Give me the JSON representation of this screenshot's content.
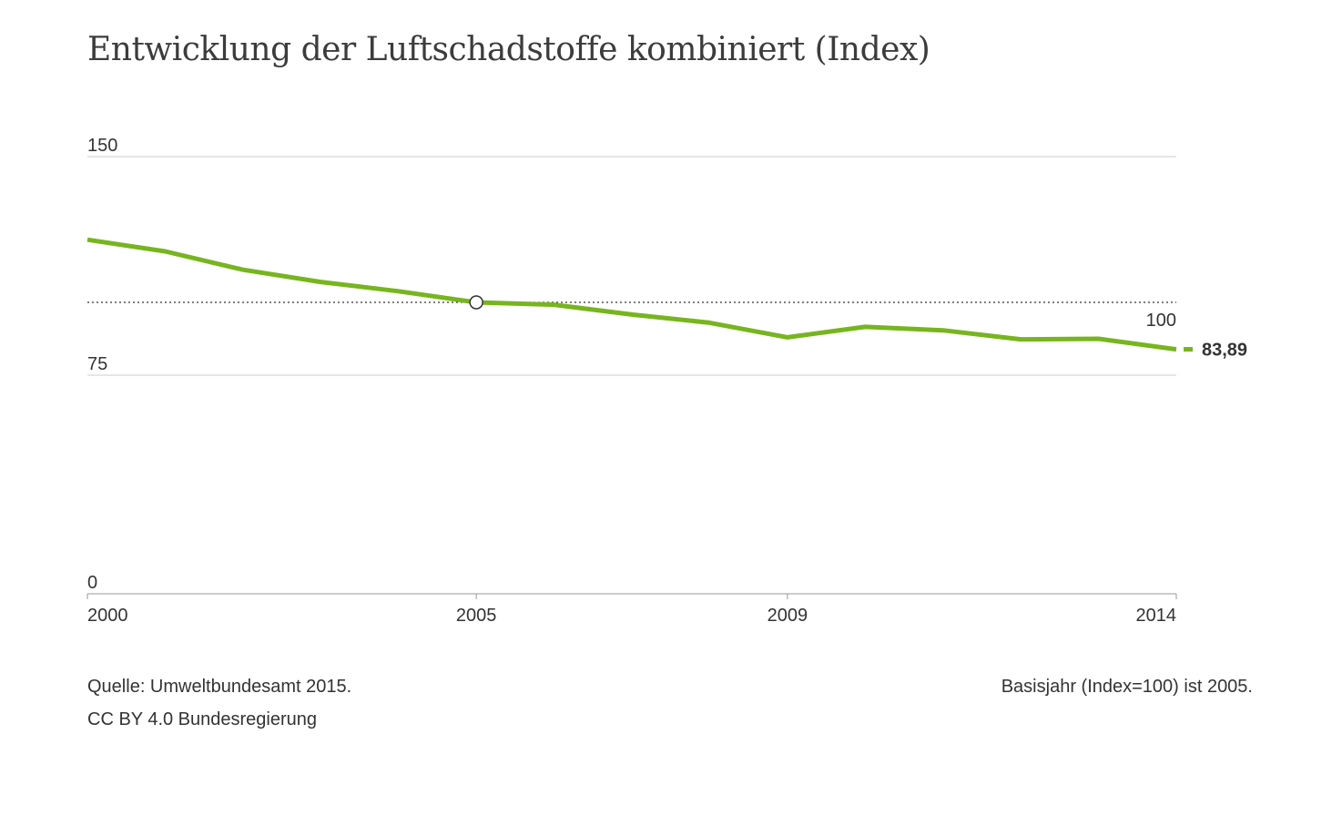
{
  "chart_data": {
    "type": "line",
    "title": "Entwicklung der Luftschadstoffe kombiniert (Index)",
    "x": [
      2000,
      2001,
      2002,
      2003,
      2004,
      2005,
      2006,
      2007,
      2008,
      2009,
      2010,
      2011,
      2012,
      2013,
      2014
    ],
    "series": [
      {
        "values": [
          121.5,
          117.5,
          111.2,
          107.0,
          103.8,
          100.0,
          99.2,
          95.8,
          93.0,
          88.0,
          91.6,
          90.4,
          87.3,
          87.5,
          83.89
        ]
      }
    ],
    "ylim": [
      0,
      150
    ],
    "xlim": [
      2000,
      2014
    ],
    "y_ticks": [
      "150",
      "75",
      "0"
    ],
    "x_ticks": [
      "2000",
      "2005",
      "2009",
      "2014"
    ],
    "reference_line": {
      "value": 100,
      "label": "100"
    },
    "base_point": {
      "x": 2005,
      "y": 100
    },
    "end_label": "83,89",
    "grid": true,
    "colors": {
      "line": "#77b51f",
      "grid": "#cccccc",
      "reference": "#333333",
      "text": "#333333"
    }
  },
  "footer": {
    "source": "Quelle: Umweltbundesamt 2015.",
    "license": "CC BY 4.0 Bundesregierung",
    "note": "Basisjahr (Index=100) ist 2005."
  }
}
